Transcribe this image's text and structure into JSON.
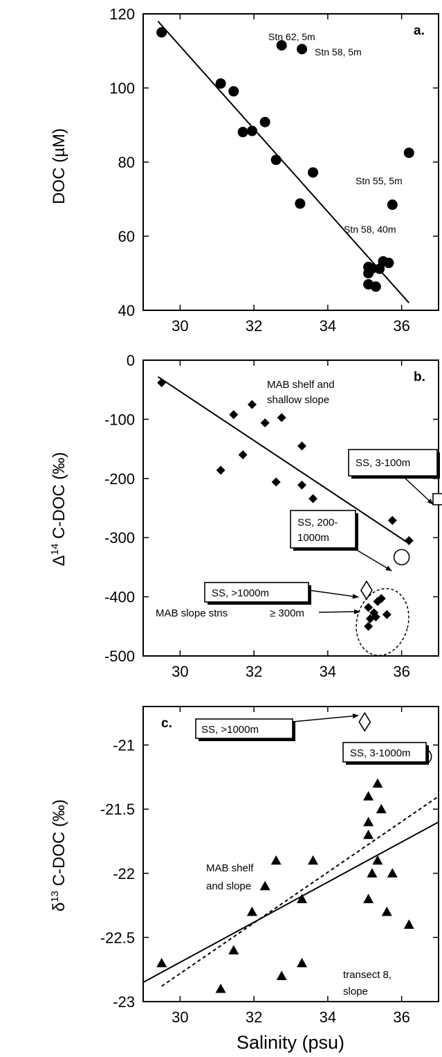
{
  "xlabel": "Salinity (psu)",
  "chart_data": [
    {
      "type": "scatter",
      "panel_label": "a.",
      "ylabel": "DOC (µM)",
      "xlim": [
        29,
        37
      ],
      "ylim": [
        40,
        120
      ],
      "xticks": [
        30,
        32,
        34,
        36
      ],
      "yticks": [
        40,
        60,
        80,
        100,
        120
      ],
      "xtick_labels": [
        "30",
        "32",
        "34",
        "36"
      ],
      "ytick_labels": [
        "40",
        "60",
        "80",
        "100",
        "120"
      ],
      "points": [
        [
          29.5,
          115
        ],
        [
          31.1,
          101.2
        ],
        [
          31.45,
          99.1
        ],
        [
          31.7,
          88.1
        ],
        [
          31.95,
          88.4
        ],
        [
          32.3,
          90.8
        ],
        [
          32.6,
          80.6
        ],
        [
          32.75,
          111.5
        ],
        [
          33.3,
          110.5
        ],
        [
          33.25,
          68.8
        ],
        [
          33.6,
          77.2
        ],
        [
          35.1,
          51.7
        ],
        [
          35.1,
          50
        ],
        [
          35.1,
          47
        ],
        [
          35.2,
          51.3
        ],
        [
          35.3,
          46.4
        ],
        [
          35.4,
          51.2
        ],
        [
          35.5,
          53.2
        ],
        [
          35.65,
          52.8
        ],
        [
          35.75,
          68.5
        ],
        [
          36.2,
          82.5
        ]
      ],
      "fit_line": [
        [
          29.4,
          118
        ],
        [
          36.2,
          42
        ]
      ],
      "annotations": [
        "Stn 62, 5m",
        "Stn 58, 5m",
        "Stn 55, 5m",
        "Stn 58, 40m"
      ]
    },
    {
      "type": "scatter",
      "panel_label": "b.",
      "ylabel_pre": "Δ",
      "ylabel_sup": "14",
      "ylabel_post": " C-DOC (‰)",
      "xlim": [
        29,
        37
      ],
      "ylim": [
        -500,
        0
      ],
      "xticks": [
        30,
        32,
        34,
        36
      ],
      "yticks": [
        0,
        -100,
        -200,
        -300,
        -400,
        -500
      ],
      "xtick_labels": [
        "30",
        "32",
        "34",
        "36"
      ],
      "ytick_labels": [
        "0",
        "-100",
        "-200",
        "-300",
        "-400",
        "-500"
      ],
      "points": [
        [
          29.5,
          -38
        ],
        [
          31.1,
          -186
        ],
        [
          31.45,
          -92
        ],
        [
          31.7,
          -160
        ],
        [
          31.95,
          -75
        ],
        [
          32.3,
          -106
        ],
        [
          32.6,
          -206
        ],
        [
          32.75,
          -97
        ],
        [
          33.3,
          -145
        ],
        [
          33.3,
          -211
        ],
        [
          33.6,
          -234
        ],
        [
          35.75,
          -271
        ],
        [
          36.2,
          -305
        ],
        [
          35.1,
          -418
        ],
        [
          35.15,
          -437
        ],
        [
          35.1,
          -450
        ],
        [
          35.3,
          -434
        ],
        [
          35.35,
          -408
        ],
        [
          35.45,
          -403
        ],
        [
          35.6,
          -430
        ],
        [
          35.25,
          -427
        ]
      ],
      "open_points": [
        {
          "shape": "square",
          "x": 37,
          "y": -235
        },
        {
          "shape": "circle",
          "x": 36,
          "y": -333
        },
        {
          "shape": "diamond",
          "x": 35.05,
          "y": -389
        }
      ],
      "fit_line": [
        [
          29.4,
          -28
        ],
        [
          36.2,
          -310
        ]
      ],
      "annotations": [
        "MAB shelf and",
        "shallow slope",
        "MAB slope stns",
        "≥ 300m"
      ],
      "boxes": [
        [
          "SS, 3-100m"
        ],
        [
          "SS, 200-",
          "1000m"
        ],
        [
          "SS, >1000m"
        ]
      ]
    },
    {
      "type": "scatter",
      "panel_label": "c.",
      "ylabel_pre": "δ",
      "ylabel_sup": "13",
      "ylabel_post": " C-DOC (‰)",
      "xlim": [
        29,
        37
      ],
      "ylim": [
        -23,
        -20.7
      ],
      "xticks": [
        30,
        32,
        34,
        36
      ],
      "yticks": [
        -21,
        -21.5,
        -22,
        -22.5,
        -23
      ],
      "xtick_labels": [
        "30",
        "32",
        "34",
        "36"
      ],
      "ytick_labels": [
        "-21",
        "-21.5",
        "-22",
        "-22.5",
        "-23"
      ],
      "points": [
        [
          29.5,
          -22.7
        ],
        [
          31.1,
          -22.9
        ],
        [
          31.45,
          -22.6
        ],
        [
          31.95,
          -22.3
        ],
        [
          32.3,
          -22.1
        ],
        [
          32.6,
          -21.9
        ],
        [
          32.75,
          -22.8
        ],
        [
          33.3,
          -22.2
        ],
        [
          33.3,
          -22.7
        ],
        [
          33.6,
          -21.9
        ],
        [
          35.1,
          -21.4
        ],
        [
          35.1,
          -21.6
        ],
        [
          35.1,
          -21.7
        ],
        [
          35.2,
          -22
        ],
        [
          35.1,
          -22.2
        ],
        [
          35.35,
          -21.3
        ],
        [
          35.35,
          -21.9
        ],
        [
          35.45,
          -21.5
        ],
        [
          35.6,
          -22.3
        ],
        [
          35.75,
          -22
        ],
        [
          36.2,
          -22.4
        ]
      ],
      "open_points": [
        {
          "shape": "diamond",
          "x": 35,
          "y": -20.82
        },
        {
          "shape": "circle",
          "x": 36.6,
          "y": -21.09
        }
      ],
      "fit_line": [
        [
          29,
          -22.85
        ],
        [
          37,
          -21.6
        ]
      ],
      "dashed_line": [
        [
          29.5,
          -22.88
        ],
        [
          37,
          -21.4
        ]
      ],
      "annotations": [
        "MAB shelf",
        "and slope",
        "transect 8,",
        "slope"
      ],
      "boxes": [
        [
          "SS, >1000m"
        ],
        [
          "SS, 3-1000m"
        ]
      ]
    }
  ]
}
